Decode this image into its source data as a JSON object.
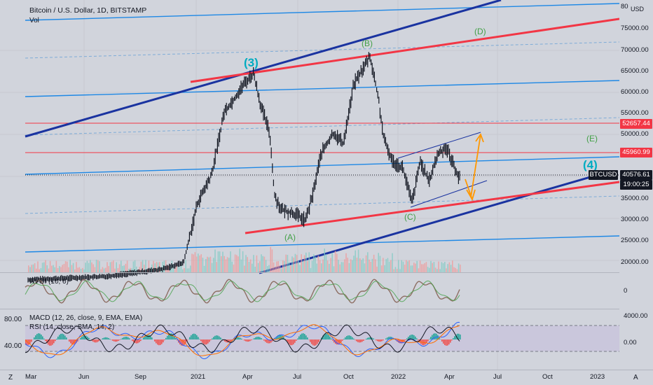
{
  "header": {
    "symbol_title": "Bitcoin / U.S. Dollar, 1D, BITSTAMP",
    "vol_label": "Vol",
    "currency": "USD"
  },
  "price_axis": [
    "75000.00",
    "70000.00",
    "65000.00",
    "60000.00",
    "55000.00",
    "50000.00",
    "35000.00",
    "30000.00",
    "25000.00",
    "20000.00"
  ],
  "price_axis_top": "80",
  "badges": {
    "level_1": "52657.44",
    "level_2": "45960.99",
    "symbol": "BTCUSD",
    "last_price": "40576.61",
    "countdown": "19:00:25"
  },
  "waves": {
    "w3": "(3)",
    "w4": "(4)",
    "wA": "(A)",
    "wB": "(B)",
    "wC": "(C)",
    "wD": "(D)",
    "wE": "(E)"
  },
  "rvgi": {
    "label": "RVGI (10, 0)",
    "zero": "0"
  },
  "macd": {
    "label": "MACD (12, 26, close, 9, EMA, EMA)",
    "top": "4000.00",
    "zero": "0.00"
  },
  "rsi": {
    "label": "RSI (14, close, SMA, 14, 2)",
    "high": "80.00",
    "low": "40.00"
  },
  "time_axis": [
    "Mar",
    "Jun",
    "Sep",
    "2021",
    "Apr",
    "Jul",
    "Oct",
    "2022",
    "Apr",
    "Jul",
    "Oct",
    "2023"
  ],
  "corner": {
    "z": "Z",
    "a": "A"
  },
  "colors": {
    "bg": "#d1d4dc",
    "blue_line": "#2962ff",
    "navy_line": "#1a33a0",
    "red_line": "#f23645",
    "orange": "#ff9800",
    "green_label": "#4caf50",
    "cyan_label": "#00bcd4"
  }
}
